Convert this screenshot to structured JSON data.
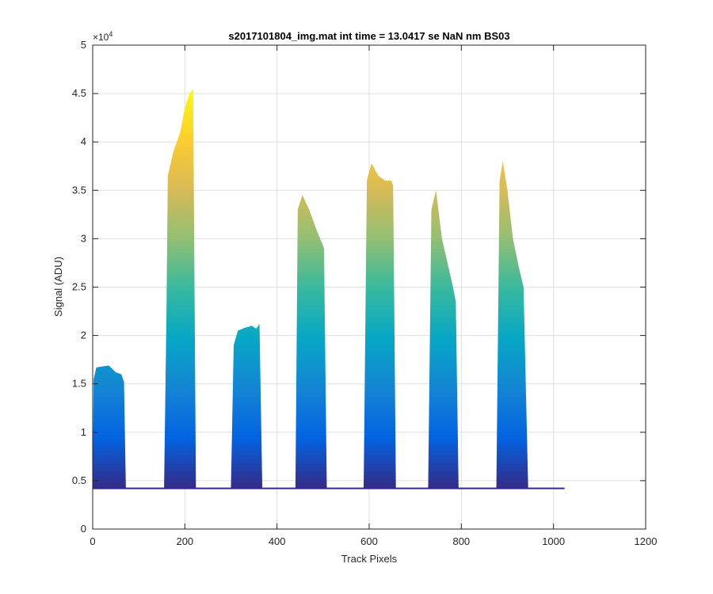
{
  "chart_data": {
    "type": "line",
    "title": "s2017101804_img.mat int time = 13.0417 se  NaN nm BS03",
    "xlabel": "Track Pixels",
    "ylabel": "Signal (ADU)",
    "xlim": [
      0,
      1200
    ],
    "ylim": [
      0,
      50000
    ],
    "xticks": [
      0,
      200,
      400,
      600,
      800,
      1000,
      1200
    ],
    "yticks": [
      0,
      5000,
      10000,
      15000,
      20000,
      25000,
      30000,
      35000,
      40000,
      45000,
      50000
    ],
    "ytick_labels": [
      "0",
      "0.5",
      "1",
      "1.5",
      "2",
      "2.5",
      "3",
      "3.5",
      "4",
      "4.5",
      "5"
    ],
    "y_exponent_base": "×10",
    "y_exponent_power": "4",
    "grid": true,
    "colormap": "parula",
    "colormap_stops": [
      "#352a87",
      "#0363e1",
      "#1485d4",
      "#06a7c6",
      "#38b99e",
      "#92bf73",
      "#d9ba56",
      "#fcce2e",
      "#f9fb0e"
    ],
    "baseline": 4200,
    "x_end": 1024,
    "peaks": [
      {
        "x": [
          0,
          2,
          8,
          20,
          35,
          50,
          62,
          68,
          72
        ],
        "y": [
          4200,
          15500,
          16700,
          16800,
          16900,
          16200,
          16000,
          15200,
          4200
        ]
      },
      {
        "x": [
          155,
          160,
          163,
          175,
          190,
          200,
          210,
          218,
          224
        ],
        "y": [
          4600,
          22000,
          36500,
          39000,
          41000,
          43500,
          45000,
          45500,
          4300
        ]
      },
      {
        "x": [
          300,
          306,
          315,
          330,
          345,
          355,
          362,
          368
        ],
        "y": [
          4300,
          19000,
          20500,
          20800,
          21000,
          20700,
          21200,
          4300
        ]
      },
      {
        "x": [
          440,
          445,
          455,
          470,
          485,
          498,
          502,
          508
        ],
        "y": [
          4300,
          33000,
          34500,
          33000,
          31000,
          29500,
          29000,
          4300
        ]
      },
      {
        "x": [
          588,
          595,
          605,
          620,
          635,
          648,
          652,
          658
        ],
        "y": [
          4300,
          36000,
          37800,
          36500,
          36000,
          36000,
          35500,
          4300
        ]
      },
      {
        "x": [
          728,
          735,
          745,
          758,
          770,
          782,
          788,
          794
        ],
        "y": [
          4300,
          33000,
          35000,
          30000,
          27500,
          25000,
          23500,
          4300
        ]
      },
      {
        "x": [
          876,
          883,
          890,
          900,
          912,
          925,
          935,
          945
        ],
        "y": [
          4300,
          36000,
          38000,
          35000,
          30000,
          27000,
          25000,
          4300
        ]
      }
    ]
  }
}
